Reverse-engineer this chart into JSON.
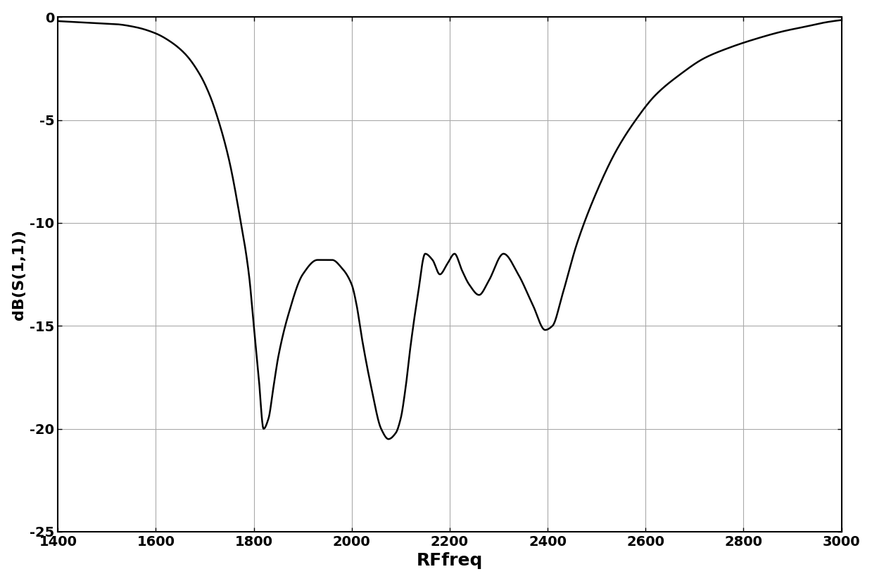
{
  "title": "",
  "xlabel": "RFfreq",
  "ylabel": "dB(S(1,1))",
  "xlim": [
    1400,
    3000
  ],
  "ylim": [
    -25,
    0
  ],
  "xticks": [
    1400,
    1600,
    1800,
    2000,
    2200,
    2400,
    2600,
    2800,
    3000
  ],
  "yticks": [
    0,
    -5,
    -10,
    -15,
    -20,
    -25
  ],
  "line_color": "#000000",
  "line_width": 1.8,
  "bg_color": "#ffffff",
  "grid_color": "#aaaaaa",
  "keypoints_x": [
    1400,
    1480,
    1520,
    1560,
    1600,
    1630,
    1660,
    1690,
    1710,
    1730,
    1750,
    1770,
    1790,
    1800,
    1810,
    1820,
    1830,
    1840,
    1850,
    1870,
    1900,
    1930,
    1960,
    1980,
    2000,
    2010,
    2020,
    2040,
    2060,
    2075,
    2090,
    2100,
    2110,
    2120,
    2135,
    2150,
    2165,
    2180,
    2195,
    2210,
    2225,
    2240,
    2260,
    2280,
    2310,
    2340,
    2370,
    2395,
    2410,
    2430,
    2460,
    2500,
    2540,
    2580,
    2620,
    2670,
    2720,
    2770,
    2820,
    2880,
    2930,
    2970,
    3000
  ],
  "keypoints_y": [
    -0.2,
    -0.3,
    -0.35,
    -0.5,
    -0.8,
    -1.2,
    -1.8,
    -2.8,
    -3.8,
    -5.2,
    -7.0,
    -9.5,
    -12.5,
    -15.0,
    -17.5,
    -20.0,
    -19.5,
    -18.0,
    -16.5,
    -14.5,
    -12.5,
    -11.8,
    -11.8,
    -12.2,
    -13.0,
    -14.0,
    -15.5,
    -18.0,
    -20.0,
    -20.5,
    -20.2,
    -19.5,
    -18.0,
    -16.0,
    -13.5,
    -11.5,
    -11.8,
    -12.5,
    -12.0,
    -11.5,
    -12.3,
    -13.0,
    -13.5,
    -12.8,
    -11.5,
    -12.5,
    -14.0,
    -15.2,
    -15.0,
    -13.5,
    -11.0,
    -8.5,
    -6.5,
    -5.0,
    -3.8,
    -2.8,
    -2.0,
    -1.5,
    -1.1,
    -0.7,
    -0.45,
    -0.25,
    -0.15
  ],
  "xlabel_fontsize": 18,
  "ylabel_fontsize": 16,
  "tick_fontsize": 14,
  "tick_fontweight": "bold",
  "font_family": "DejaVu Sans"
}
